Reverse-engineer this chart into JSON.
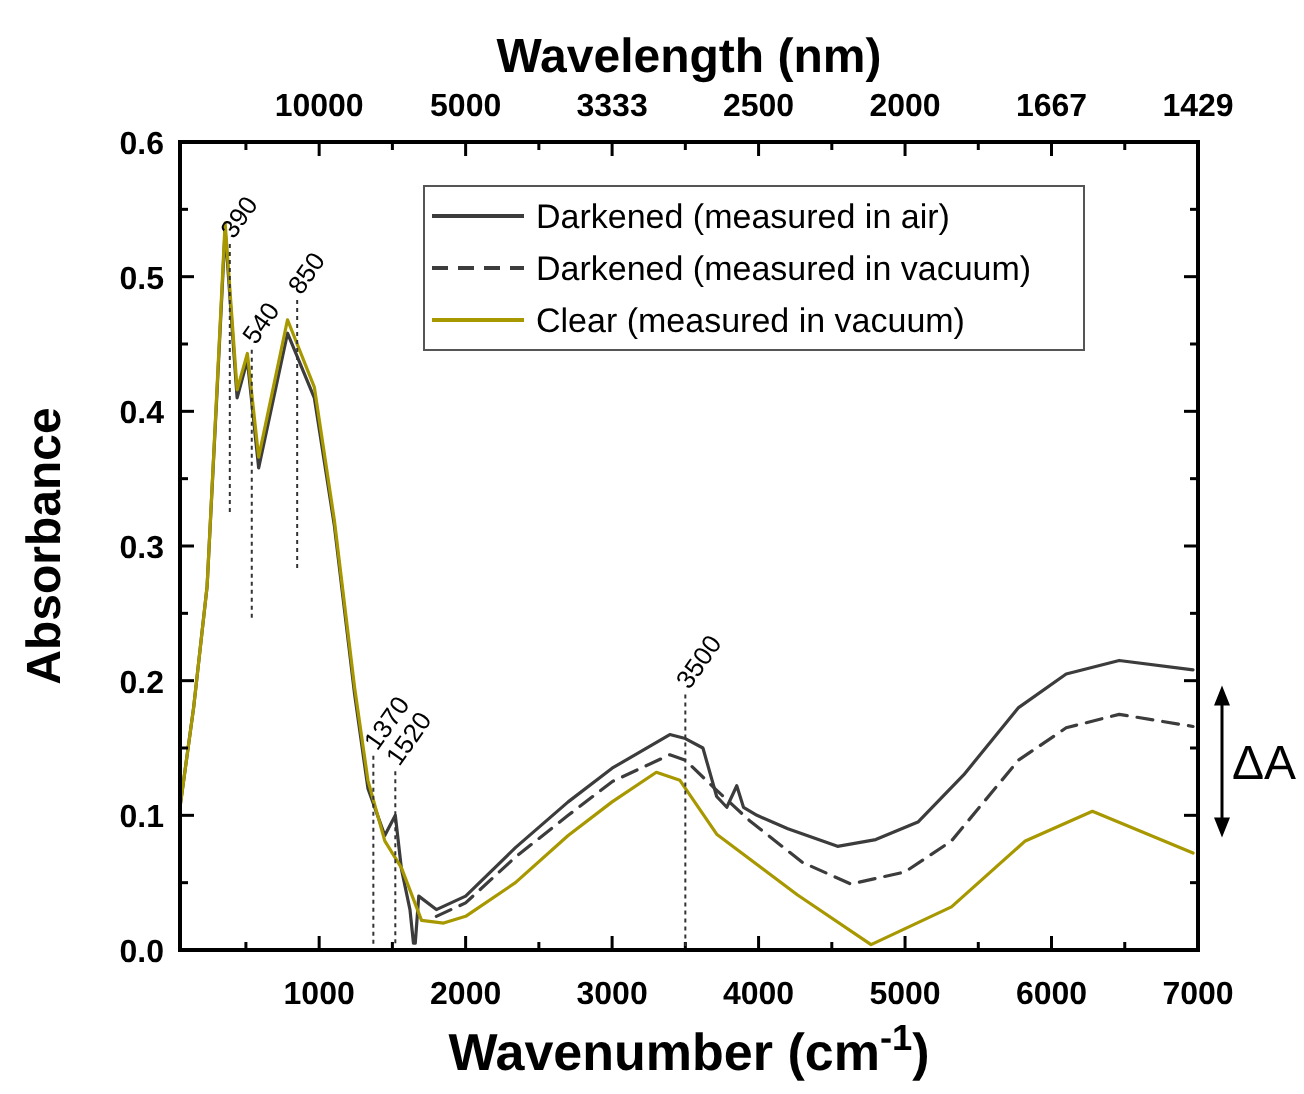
{
  "chart_data": {
    "type": "line",
    "xlabel": "Wavenumber (cm$^{-1}$)",
    "ylabel": "Absorbance",
    "x2label": "Wavelength (nm)",
    "xlim": [
      50,
      7000
    ],
    "ylim": [
      0,
      0.6
    ],
    "xticks": [
      {
        "value": 500,
        "label": null
      },
      1000,
      {
        "value": 1500,
        "label": null
      },
      2000,
      {
        "value": 2500,
        "label": null
      },
      3000,
      {
        "value": 3500,
        "label": null
      },
      4000,
      {
        "value": 4500,
        "label": null
      },
      5000,
      {
        "value": 5500,
        "label": null
      },
      6000,
      {
        "value": 6500,
        "label": null
      },
      7000
    ],
    "yticks": [
      {
        "value": 0,
        "label": "0.0"
      },
      {
        "value": 0.05,
        "label": null
      },
      0.1,
      {
        "value": 0.15,
        "label": null
      },
      0.2,
      {
        "value": 0.25,
        "label": null
      },
      0.3,
      {
        "value": 0.35,
        "label": null
      },
      0.4,
      {
        "value": 0.45,
        "label": null
      },
      0.5,
      {
        "value": 0.55,
        "label": null
      },
      0.6
    ],
    "ref_lines": [
      {
        "axis": "x",
        "value": 390,
        "label": "390"
      },
      {
        "axis": "x",
        "value": 540,
        "label": "540"
      },
      {
        "axis": "x",
        "value": 850,
        "label": "850"
      },
      {
        "axis": "x",
        "value": 1370,
        "label": "1370"
      },
      {
        "axis": "x",
        "value": 1520,
        "label": "1520"
      },
      {
        "axis": "x",
        "value": 3500,
        "label": "3500"
      }
    ],
    "legend": "top right",
    "grid": false,
    "series": [
      {
        "name": "Darkened (measured in air)",
        "color": "#3c3c3c",
        "line_style": "solid",
        "x": [
          50,
          143,
          235,
          303,
          358,
          440,
          510,
          587,
          784,
          967,
          1104,
          1242,
          1333,
          1448,
          1520,
          1562,
          1620,
          1644,
          1656,
          1680,
          1800,
          2000,
          2340,
          2700,
          3000,
          3394,
          3500,
          3620,
          3714,
          3783,
          3851,
          3897,
          3989,
          4200,
          4539,
          4800,
          5088,
          5400,
          5775,
          6100,
          6462,
          6966
        ],
        "values": [
          0.106,
          0.18,
          0.27,
          0.415,
          0.535,
          0.41,
          0.438,
          0.358,
          0.458,
          0.41,
          0.315,
          0.19,
          0.12,
          0.085,
          0.1,
          0.06,
          0.03,
          0.005,
          0.005,
          0.04,
          0.03,
          0.04,
          0.076,
          0.11,
          0.135,
          0.16,
          0.157,
          0.15,
          0.114,
          0.106,
          0.122,
          0.106,
          0.1,
          0.09,
          0.077,
          0.082,
          0.095,
          0.13,
          0.18,
          0.205,
          0.215,
          0.208
        ]
      },
      {
        "name": "Darkened (measured in vacuum)",
        "color": "#3c3c3c",
        "line_style": "dashed",
        "x": [
          1800,
          2000,
          2340,
          2700,
          3000,
          3394,
          3500,
          3700,
          3939,
          4300,
          4630,
          5000,
          5317,
          5775,
          6100,
          6462,
          6966
        ],
        "values": [
          0.025,
          0.035,
          0.069,
          0.1,
          0.125,
          0.145,
          0.141,
          0.12,
          0.096,
          0.065,
          0.049,
          0.058,
          0.081,
          0.141,
          0.165,
          0.175,
          0.166
        ]
      },
      {
        "name": "Clear (measured in vacuum)",
        "color": "#a89800",
        "line_style": "solid",
        "x": [
          50,
          143,
          235,
          303,
          358,
          440,
          510,
          587,
          784,
          967,
          1104,
          1242,
          1333,
          1448,
          1562,
          1699,
          1850,
          2000,
          2340,
          2700,
          3000,
          3302,
          3463,
          3714,
          4264,
          4768,
          5317,
          5821,
          6279,
          6966
        ],
        "values": [
          0.106,
          0.18,
          0.27,
          0.418,
          0.54,
          0.416,
          0.443,
          0.366,
          0.468,
          0.418,
          0.319,
          0.195,
          0.126,
          0.081,
          0.061,
          0.022,
          0.02,
          0.025,
          0.05,
          0.085,
          0.11,
          0.132,
          0.126,
          0.086,
          0.041,
          0.004,
          0.032,
          0.081,
          0.103,
          0.072
        ]
      }
    ],
    "annotations": [
      "ΔA",
      "10000",
      "5000",
      "3333",
      "2500",
      "2000",
      "1667",
      "1429"
    ]
  }
}
